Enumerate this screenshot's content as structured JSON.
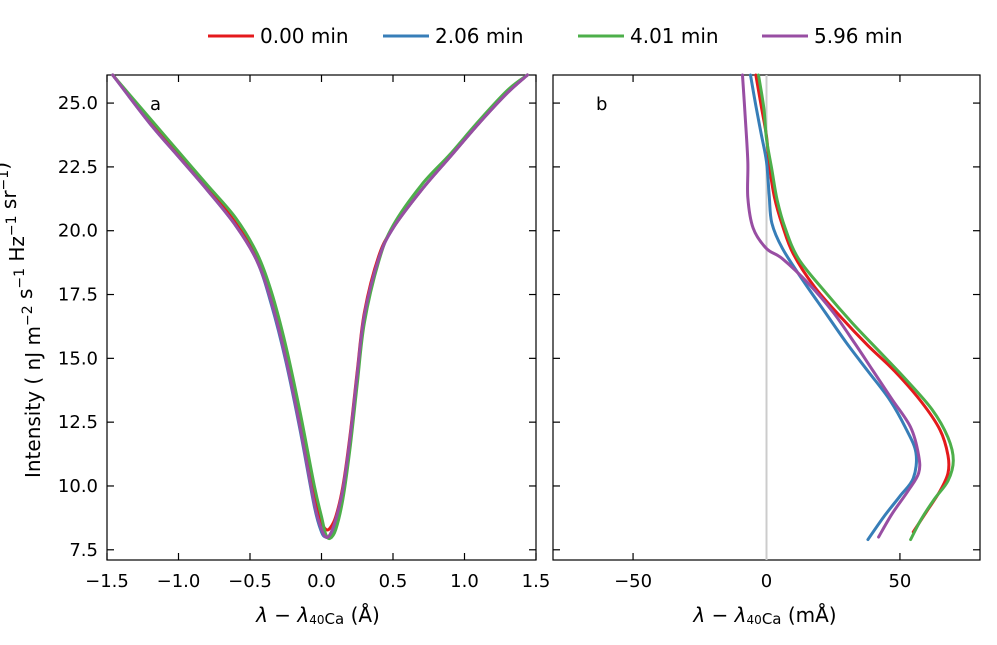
{
  "legend": [
    {
      "label": "0.00 min",
      "color": "#e41a1c"
    },
    {
      "label": "2.06 min",
      "color": "#377eb8"
    },
    {
      "label": "4.01 min",
      "color": "#4daf4a"
    },
    {
      "label": "5.96 min",
      "color": "#984ea3"
    }
  ],
  "y_axis_label": "Intensity ( nJ m−2 s−1 Hz−1 sr−1)",
  "chart_data": [
    {
      "type": "line",
      "panel_label": "a",
      "xlabel": "λ − λ40Ca (Å)",
      "xlabel_main": "λ − λ",
      "xlabel_sub": "40",
      "xlabel_sub2": "Ca",
      "xlabel_unit": " (Å)",
      "xlim": [
        -1.5,
        1.5
      ],
      "ylim": [
        7.1,
        26.1
      ],
      "x_ticks": [
        -1.5,
        -1.0,
        -0.5,
        0.0,
        0.5,
        1.0,
        1.5
      ],
      "x_tick_labels": [
        "−1.5",
        "−1.0",
        "−0.5",
        "0.0",
        "0.5",
        "1.0",
        "1.5"
      ],
      "y_ticks": [
        7.5,
        10.0,
        12.5,
        15.0,
        17.5,
        20.0,
        22.5,
        25.0
      ],
      "y_tick_labels": [
        "7.5",
        "10.0",
        "12.5",
        "15.0",
        "17.5",
        "20.0",
        "22.5",
        "25.0"
      ],
      "series": [
        {
          "name": "0.00 min",
          "x": [
            -1.46,
            -1.2,
            -1.0,
            -0.8,
            -0.6,
            -0.45,
            -0.35,
            -0.25,
            -0.15,
            -0.05,
            0.0,
            0.03,
            0.06,
            0.1,
            0.15,
            0.2,
            0.25,
            0.3,
            0.4,
            0.5,
            0.7,
            0.9,
            1.1,
            1.3,
            1.44
          ],
          "y": [
            26.1,
            24.3,
            23.0,
            21.7,
            20.3,
            18.9,
            17.3,
            15.1,
            12.5,
            9.6,
            8.6,
            8.3,
            8.35,
            8.8,
            10.0,
            12.0,
            14.5,
            16.8,
            19.0,
            20.1,
            21.6,
            22.9,
            24.2,
            25.4,
            26.1
          ]
        },
        {
          "name": "2.06 min",
          "x": [
            -1.46,
            -1.2,
            -1.0,
            -0.8,
            -0.6,
            -0.45,
            -0.35,
            -0.25,
            -0.15,
            -0.05,
            0.0,
            0.03,
            0.06,
            0.1,
            0.15,
            0.2,
            0.25,
            0.3,
            0.4,
            0.5,
            0.7,
            0.9,
            1.1,
            1.3,
            1.44
          ],
          "y": [
            26.1,
            24.2,
            22.9,
            21.6,
            20.2,
            18.8,
            17.1,
            14.9,
            12.2,
            9.2,
            8.2,
            8.0,
            8.05,
            8.6,
            9.8,
            11.8,
            14.3,
            16.6,
            18.9,
            20.1,
            21.6,
            22.9,
            24.2,
            25.4,
            26.1
          ]
        },
        {
          "name": "4.01 min",
          "x": [
            -1.46,
            -1.2,
            -1.0,
            -0.8,
            -0.6,
            -0.45,
            -0.35,
            -0.25,
            -0.15,
            -0.05,
            0.0,
            0.03,
            0.06,
            0.1,
            0.15,
            0.2,
            0.25,
            0.3,
            0.4,
            0.5,
            0.7,
            0.9,
            1.1,
            1.3,
            1.44
          ],
          "y": [
            26.1,
            24.4,
            23.1,
            21.8,
            20.5,
            19.1,
            17.6,
            15.5,
            12.9,
            10.0,
            8.8,
            8.1,
            7.95,
            8.3,
            9.5,
            11.5,
            14.0,
            16.4,
            18.8,
            20.2,
            21.8,
            23.0,
            24.3,
            25.5,
            26.1
          ]
        },
        {
          "name": "5.96 min",
          "x": [
            -1.46,
            -1.2,
            -1.0,
            -0.8,
            -0.6,
            -0.45,
            -0.35,
            -0.25,
            -0.15,
            -0.05,
            0.0,
            0.03,
            0.06,
            0.1,
            0.15,
            0.2,
            0.25,
            0.3,
            0.4,
            0.5,
            0.7,
            0.9,
            1.1,
            1.3,
            1.44
          ],
          "y": [
            26.1,
            24.2,
            22.9,
            21.6,
            20.2,
            18.8,
            17.2,
            15.0,
            12.3,
            9.3,
            8.3,
            8.0,
            8.1,
            8.7,
            9.9,
            11.9,
            14.4,
            16.7,
            18.9,
            20.1,
            21.6,
            22.9,
            24.2,
            25.4,
            26.1
          ]
        }
      ]
    },
    {
      "type": "line",
      "panel_label": "b",
      "xlabel": "λ − λ40Ca (mÅ)",
      "xlabel_main": "λ − λ",
      "xlabel_sub": "40",
      "xlabel_sub2": "Ca",
      "xlabel_unit": " (mÅ)",
      "xlim": [
        -80,
        80
      ],
      "ylim": [
        7.1,
        26.1
      ],
      "x_ticks": [
        -50,
        0,
        50
      ],
      "x_tick_labels": [
        "−50",
        "0",
        "50"
      ],
      "y_ticks": [
        7.5,
        10.0,
        12.5,
        15.0,
        17.5,
        20.0,
        22.5,
        25.0
      ],
      "reference_line_x": 0,
      "series": [
        {
          "name": "0.00 min",
          "x": [
            55,
            60,
            65,
            68,
            68,
            65,
            58,
            48,
            38,
            28,
            18,
            10,
            6,
            3,
            1,
            0,
            -2,
            -4
          ],
          "y": [
            8.2,
            9.0,
            9.8,
            10.5,
            11.2,
            12.2,
            13.3,
            14.5,
            15.5,
            16.6,
            17.8,
            19.1,
            20.2,
            21.3,
            22.6,
            23.7,
            24.9,
            26.1
          ]
        },
        {
          "name": "2.06 min",
          "x": [
            38,
            44,
            50,
            55,
            56,
            52,
            46,
            38,
            30,
            22,
            14,
            6,
            2,
            1,
            0,
            -2,
            -4,
            -6
          ],
          "y": [
            7.9,
            8.8,
            9.6,
            10.3,
            11.3,
            12.3,
            13.4,
            14.5,
            15.6,
            16.8,
            18.0,
            19.3,
            20.3,
            21.4,
            22.7,
            23.8,
            24.9,
            26.1
          ]
        },
        {
          "name": "4.01 min",
          "x": [
            54,
            58,
            63,
            68,
            70,
            68,
            62,
            52,
            42,
            32,
            22,
            12,
            7,
            4,
            2,
            0,
            -1,
            -3
          ],
          "y": [
            7.9,
            8.7,
            9.5,
            10.2,
            11.0,
            11.9,
            13.0,
            14.2,
            15.3,
            16.4,
            17.6,
            18.9,
            20.1,
            21.2,
            22.4,
            23.6,
            24.8,
            26.1
          ]
        },
        {
          "name": "5.96 min",
          "x": [
            42,
            47,
            53,
            57,
            57,
            54,
            47,
            40,
            33,
            25,
            16,
            6,
            0,
            -5,
            -7,
            -7,
            -8,
            -9
          ],
          "y": [
            8.0,
            8.9,
            9.8,
            10.5,
            11.2,
            12.3,
            13.4,
            14.5,
            15.6,
            16.8,
            17.9,
            18.9,
            19.3,
            20.1,
            21.3,
            22.7,
            24.5,
            26.1
          ]
        }
      ]
    }
  ]
}
